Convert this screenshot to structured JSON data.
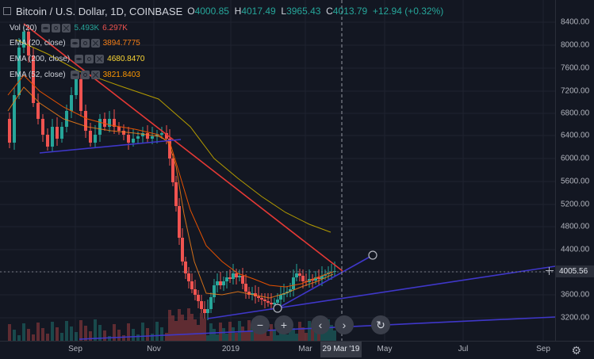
{
  "header": {
    "symbol": "Bitcoin / U.S. Dollar, 1D, COINBASE",
    "open_k": "O",
    "open_v": "4000.85",
    "high_k": "H",
    "high_v": "4017.49",
    "low_k": "L",
    "low_v": "3965.43",
    "close_k": "C",
    "close_v": "4013.79",
    "change": "+12.94 (+0.32%)"
  },
  "indicators": [
    {
      "name": "Vol (20)",
      "values": [
        "5.493K",
        "6.297K"
      ],
      "colors": [
        "#26a69a",
        "#ef5350"
      ]
    },
    {
      "name": "EMA (20, close)",
      "values": [
        "3894.7775"
      ],
      "colors": [
        "#f57f17"
      ]
    },
    {
      "name": "EMA (200, close)",
      "values": [
        "4680.8470"
      ],
      "colors": [
        "#fdd835"
      ]
    },
    {
      "name": "EMA (52, close)",
      "values": [
        "3821.8403"
      ],
      "colors": [
        "#ff9800"
      ]
    }
  ],
  "price_axis": [
    "8400.00",
    "8000.00",
    "7600.00",
    "7200.00",
    "6800.00",
    "6400.00",
    "6000.00",
    "5600.00",
    "5200.00",
    "4800.00",
    "4400.00",
    "4000.00",
    "3600.00",
    "3200.00"
  ],
  "last_price": "4005.56",
  "time_axis": [
    "Sep",
    "Nov",
    "2019",
    "Mar",
    "May",
    "Jul",
    "Sep"
  ],
  "cursor_time": "29 Mar '19",
  "nav_buttons": {
    "zoom_out": "−",
    "zoom_in": "+",
    "back": "‹",
    "forward": "›",
    "reset": "↻"
  },
  "colors": {
    "up": "#26a69a",
    "down": "#ef5350",
    "ema20": "#f57f17",
    "ema52": "#e65100",
    "ema200": "#c0a000",
    "trend_red": "#e53935",
    "trend_blue": "#3f37c9"
  }
}
